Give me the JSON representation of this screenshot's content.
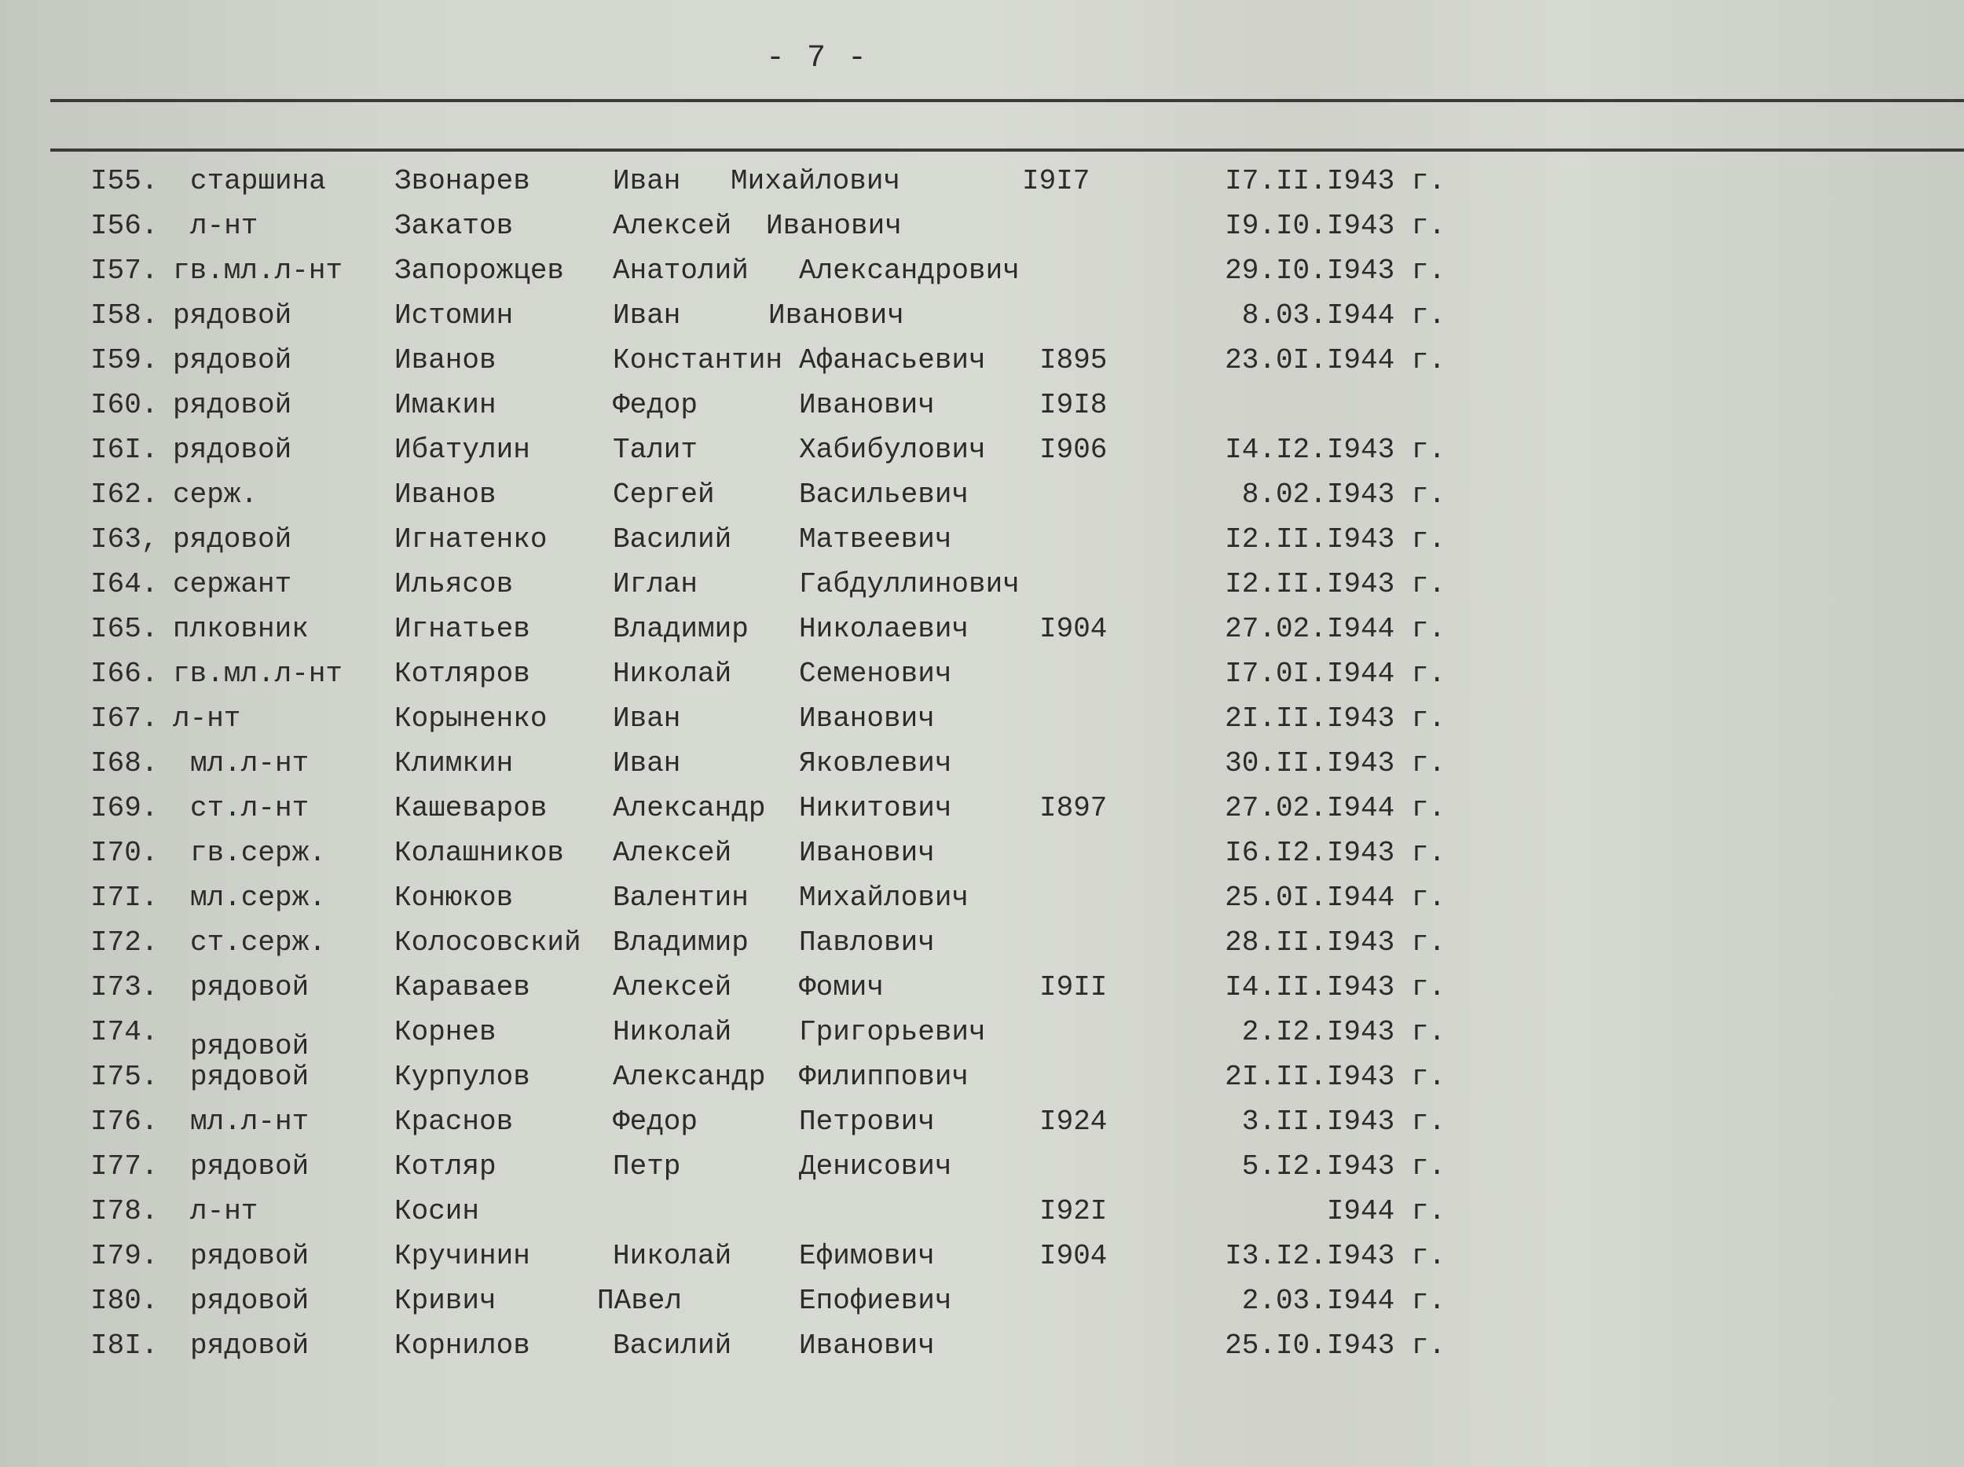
{
  "page_number": "- 7 -",
  "rows": [
    {
      "num": "I55.",
      "rank": "старшина",
      "surname": "Звонарев",
      "first": "Иван",
      "patronymic": "Михайлович",
      "year": "I9I7",
      "date": "I7.II.I943 г."
    },
    {
      "num": "I56.",
      "rank": "л-нт",
      "surname": "Закатов",
      "first": "Алексей",
      "patronymic": "Иванович",
      "year": "",
      "date": "I9.I0.I943 г."
    },
    {
      "num": "I57.",
      "rank": "гв.мл.л-нт",
      "surname": "Запорожцев",
      "first": "Анатолий",
      "patronymic": "Александрович",
      "year": "",
      "date": "29.I0.I943 г."
    },
    {
      "num": "I58.",
      "rank": "рядовой",
      "surname": "Истомин",
      "first": "Иван",
      "patronymic": "Иванович",
      "year": "",
      "date": "8.03.I944 г."
    },
    {
      "num": "I59.",
      "rank": "рядовой",
      "surname": "Иванов",
      "first": "Константин",
      "patronymic": "Афанасьевич",
      "year": "I895",
      "date": "23.0I.I944 г."
    },
    {
      "num": "I60.",
      "rank": "рядовой",
      "surname": "Имакин",
      "first": "Федор",
      "patronymic": "Иванович",
      "year": "I9I8",
      "date": ""
    },
    {
      "num": "I6I.",
      "rank": "рядовой",
      "surname": "Ибатулин",
      "first": "Талит",
      "patronymic": "Хабибулович",
      "year": "I906",
      "date": "I4.I2.I943 г."
    },
    {
      "num": "I62.",
      "rank": "серж.",
      "surname": "Иванов",
      "first": "Сергей",
      "patronymic": "Васильевич",
      "year": "",
      "date": "8.02.I943 г."
    },
    {
      "num": "I63,",
      "rank": "рядовой",
      "surname": "Игнатенко",
      "first": "Василий",
      "patronymic": "Матвеевич",
      "year": "",
      "date": "I2.II.I943 г."
    },
    {
      "num": "I64.",
      "rank": "сержант",
      "surname": "Ильясов",
      "first": "Иглан",
      "patronymic": "Габдуллинович",
      "year": "",
      "date": "I2.II.I943 г."
    },
    {
      "num": "I65.",
      "rank": "плковник",
      "surname": "Игнатьев",
      "first": "Владимир",
      "patronymic": "Николаевич",
      "year": "I904",
      "date": "27.02.I944 г."
    },
    {
      "num": "I66.",
      "rank": "гв.мл.л-нт",
      "surname": "Котляров",
      "first": "Николай",
      "patronymic": "Семенович",
      "year": "",
      "date": "I7.0I.I944 г."
    },
    {
      "num": "I67.",
      "rank": "л-нт",
      "surname": "Корыненко",
      "first": "Иван",
      "patronymic": "Иванович",
      "year": "",
      "date": "2I.II.I943 г."
    },
    {
      "num": "I68.",
      "rank": "мл.л-нт",
      "surname": "Климкин",
      "first": "Иван",
      "patronymic": "Яковлевич",
      "year": "",
      "date": "30.II.I943 г."
    },
    {
      "num": "I69.",
      "rank": "ст.л-нт",
      "surname": "Кашеваров",
      "first": "Александр",
      "patronymic": "Никитович",
      "year": "I897",
      "date": "27.02.I944 г."
    },
    {
      "num": "I70.",
      "rank": "гв.серж.",
      "surname": "Колашников",
      "first": "Алексей",
      "patronymic": "Иванович",
      "year": "",
      "date": "I6.I2.I943 г."
    },
    {
      "num": "I7I.",
      "rank": "мл.серж.",
      "surname": "Конюков",
      "first": "Валентин",
      "patronymic": "Михайлович",
      "year": "",
      "date": "25.0I.I944 г."
    },
    {
      "num": "I72.",
      "rank": "ст.серж.",
      "surname": "Колосовский",
      "first": "Владимир",
      "patronymic": "Павлович",
      "year": "",
      "date": "28.II.I943 г."
    },
    {
      "num": "I73.",
      "rank": "рядовой",
      "surname": "Караваев",
      "first": "Алексей",
      "patronymic": "Фомич",
      "year": "I9II",
      "date": "I4.II.I943 г."
    },
    {
      "num": "I74.",
      "rank": "рядовой",
      "surname": "Корнев",
      "first": "Николай",
      "patronymic": "Григорьевич",
      "year": "",
      "date": "2.I2.I943 г."
    },
    {
      "num": "I75.",
      "rank": "рядовой",
      "surname": "Курпулов",
      "first": "Александр",
      "patronymic": "Филиппович",
      "year": "",
      "date": "2I.II.I943 г."
    },
    {
      "num": "I76.",
      "rank": "мл.л-нт",
      "surname": "Краснов",
      "first": "Федор",
      "patronymic": "Петрович",
      "year": "I924",
      "date": "3.II.I943 г."
    },
    {
      "num": "I77.",
      "rank": "рядовой",
      "surname": "Котляр",
      "first": "Петр",
      "patronymic": "Денисович",
      "year": "",
      "date": "5.I2.I943 г."
    },
    {
      "num": "I78.",
      "rank": "л-нт",
      "surname": "Косин",
      "first": "",
      "patronymic": "",
      "year": "I92I",
      "date": "I944 г."
    },
    {
      "num": "I79.",
      "rank": "рядовой",
      "surname": "Кручинин",
      "first": "Николай",
      "patronymic": "Ефимович",
      "year": "I904",
      "date": "I3.I2.I943 г."
    },
    {
      "num": "I80.",
      "rank": "рядовой",
      "surname": "Кривич",
      "first": "ПАвел",
      "patronymic": "Епофиевич",
      "year": "",
      "date": "2.03.I944 г."
    },
    {
      "num": "I8I.",
      "rank": "рядовой",
      "surname": "Корнилов",
      "first": "Василий",
      "patronymic": "Иванович",
      "year": "",
      "date": "25.I0.I943 г."
    }
  ]
}
